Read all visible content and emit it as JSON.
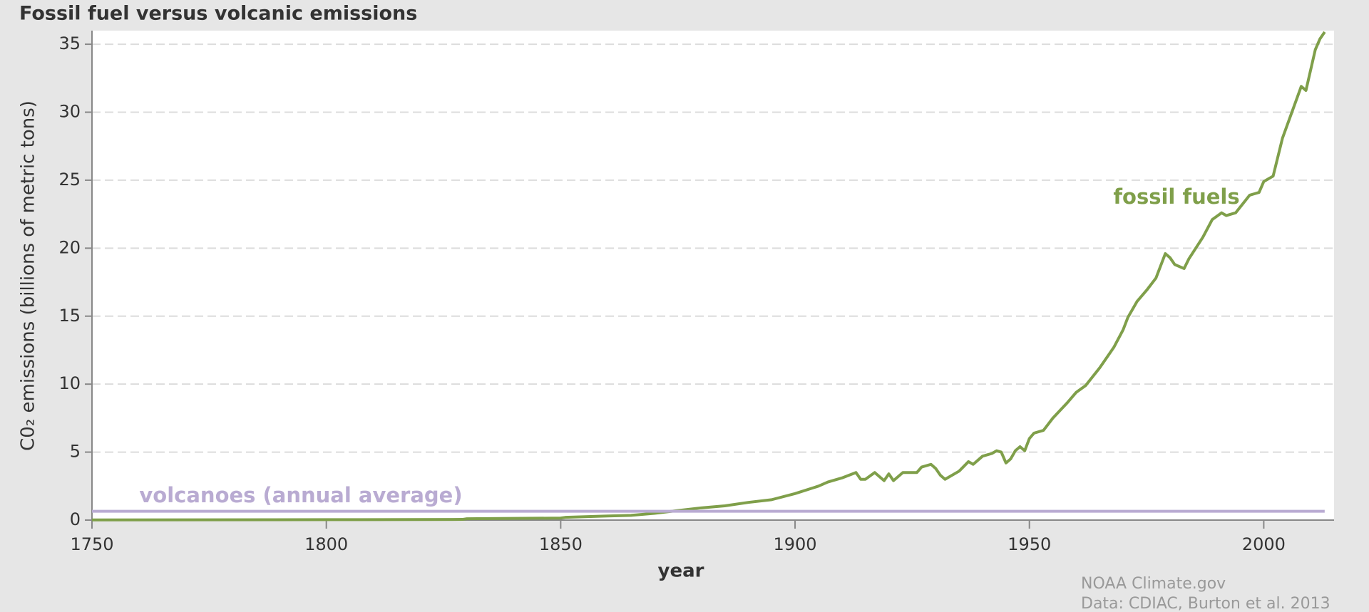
{
  "chart_data": {
    "type": "line",
    "title": "Fossil fuel versus volcanic emissions",
    "x_label": "year",
    "y_label": "C0₂ emissions (billions of metric tons)",
    "xlim": [
      1750,
      2015
    ],
    "xticks": [
      1750,
      1800,
      1850,
      1900,
      1950,
      2000
    ],
    "ylim": [
      0,
      36
    ],
    "yticks": [
      0,
      5,
      10,
      15,
      20,
      25,
      30,
      35
    ],
    "grid": true,
    "series": [
      {
        "name": "fossil fuels",
        "color": "#7f9f4a",
        "x": [
          1750,
          1800,
          1829,
          1830,
          1850,
          1851,
          1860,
          1865,
          1870,
          1875,
          1880,
          1885,
          1890,
          1895,
          1900,
          1905,
          1907,
          1910,
          1913,
          1914,
          1915,
          1917,
          1919,
          1920,
          1921,
          1923,
          1926,
          1927,
          1929,
          1930,
          1931,
          1932,
          1935,
          1937,
          1938,
          1940,
          1942,
          1943,
          1944,
          1945,
          1946,
          1947,
          1948,
          1949,
          1950,
          1951,
          1953,
          1955,
          1958,
          1960,
          1962,
          1965,
          1968,
          1970,
          1971,
          1973,
          1975,
          1977,
          1979,
          1980,
          1981,
          1983,
          1984,
          1987,
          1989,
          1991,
          1992,
          1994,
          1997,
          1998,
          1999,
          2000,
          2002,
          2004,
          2008,
          2009,
          2011,
          2012,
          2013
        ],
        "values": [
          0.01,
          0.03,
          0.05,
          0.1,
          0.15,
          0.2,
          0.3,
          0.35,
          0.5,
          0.7,
          0.9,
          1.05,
          1.3,
          1.5,
          1.95,
          2.5,
          2.8,
          3.1,
          3.5,
          3.0,
          3.0,
          3.5,
          2.9,
          3.4,
          2.9,
          3.5,
          3.5,
          3.9,
          4.1,
          3.8,
          3.3,
          3.0,
          3.6,
          4.3,
          4.1,
          4.7,
          4.9,
          5.1,
          5.0,
          4.2,
          4.5,
          5.1,
          5.4,
          5.1,
          6.0,
          6.4,
          6.6,
          7.5,
          8.6,
          9.4,
          9.9,
          11.2,
          12.7,
          14.0,
          14.9,
          16.1,
          16.9,
          17.8,
          19.6,
          19.3,
          18.8,
          18.5,
          19.2,
          20.8,
          22.1,
          22.6,
          22.4,
          22.6,
          23.9,
          24.0,
          24.1,
          24.9,
          25.3,
          28.1,
          31.9,
          31.6,
          34.6,
          35.4,
          35.9
        ]
      },
      {
        "name": "volcanoes (annual average)",
        "color": "#b9abd2",
        "x": [
          1750,
          2013
        ],
        "values": [
          0.65,
          0.65
        ]
      }
    ],
    "source": [
      "NOAA Climate.gov",
      "Data: CDIAC, Burton et al. 2013"
    ]
  }
}
